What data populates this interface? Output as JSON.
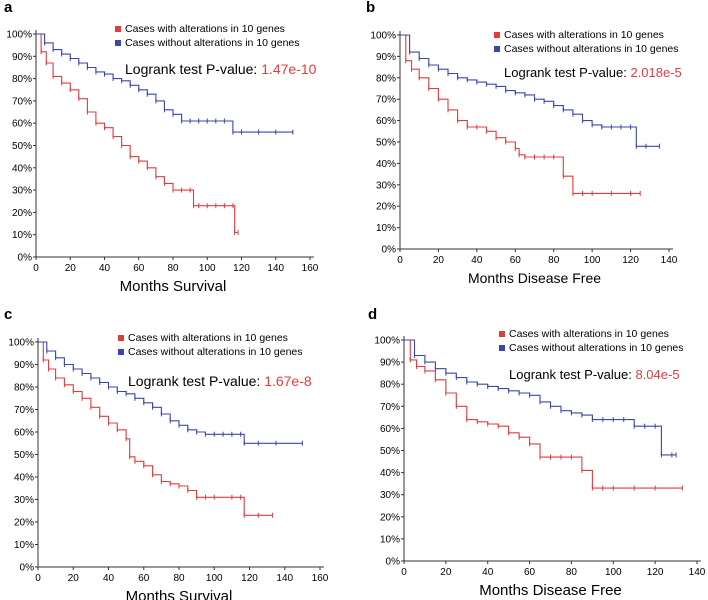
{
  "chart_data": [
    {
      "panel": "a",
      "type": "line",
      "title": "",
      "xlabel": "Months Survival",
      "ylabel": "",
      "xlim": [
        0,
        160
      ],
      "ylim": [
        0,
        100
      ],
      "x_ticks": [
        0,
        20,
        40,
        60,
        80,
        100,
        120,
        140,
        160
      ],
      "y_ticks": [
        "0%",
        "10%",
        "20%",
        "30%",
        "40%",
        "50%",
        "60%",
        "70%",
        "80%",
        "90%",
        "100%"
      ],
      "legend": "top-right",
      "logrank_label": "Logrank test P-value:",
      "logrank_value": "1.47e-10",
      "series": [
        {
          "name": "Cases with alterations in 10 genes",
          "color": "#e03c3c",
          "x": [
            0,
            3,
            6,
            10,
            15,
            20,
            25,
            30,
            35,
            40,
            45,
            50,
            55,
            60,
            65,
            70,
            75,
            80,
            85,
            90,
            92,
            95,
            100,
            105,
            110,
            115,
            116,
            118
          ],
          "y": [
            100,
            92,
            87,
            81,
            78,
            75,
            71,
            65,
            60,
            58,
            54,
            50,
            45,
            43,
            40,
            36,
            33,
            30,
            30,
            30,
            23,
            23,
            23,
            23,
            23,
            23,
            11,
            11
          ]
        },
        {
          "name": "Cases without alterations in 10 genes",
          "color": "#3c44b4",
          "x": [
            0,
            5,
            10,
            15,
            20,
            25,
            30,
            35,
            40,
            45,
            50,
            55,
            60,
            65,
            70,
            75,
            80,
            85,
            90,
            95,
            100,
            105,
            110,
            115,
            120,
            130,
            140,
            150
          ],
          "y": [
            100,
            96,
            93,
            91,
            89,
            87,
            85,
            83,
            82,
            80,
            79,
            77,
            75,
            73,
            70,
            66,
            64,
            61,
            61,
            61,
            61,
            61,
            61,
            56,
            56,
            56,
            56,
            56
          ]
        }
      ]
    },
    {
      "panel": "b",
      "type": "line",
      "title": "",
      "xlabel": "Months Disease Free",
      "ylabel": "",
      "xlim": [
        0,
        140
      ],
      "ylim": [
        0,
        100
      ],
      "x_ticks": [
        0,
        20,
        40,
        60,
        80,
        100,
        120,
        140
      ],
      "y_ticks": [
        "0%",
        "10%",
        "20%",
        "30%",
        "40%",
        "50%",
        "60%",
        "70%",
        "80%",
        "90%",
        "100%"
      ],
      "legend": "top-right",
      "logrank_label": "Logrank test P-value:",
      "logrank_value": "2.018e-5",
      "series": [
        {
          "name": "Cases with alterations in 10 genes",
          "color": "#e03c3c",
          "x": [
            0,
            3,
            6,
            10,
            15,
            20,
            25,
            30,
            35,
            40,
            45,
            50,
            55,
            60,
            62,
            65,
            70,
            75,
            80,
            85,
            90,
            95,
            100,
            110,
            120,
            125
          ],
          "y": [
            100,
            88,
            84,
            80,
            75,
            70,
            65,
            60,
            57,
            57,
            55,
            52,
            50,
            47,
            44,
            43,
            43,
            43,
            43,
            34,
            26,
            26,
            26,
            26,
            26,
            26
          ]
        },
        {
          "name": "Cases without alterations in 10 genes",
          "color": "#3c44b4",
          "x": [
            0,
            5,
            10,
            15,
            20,
            25,
            30,
            35,
            40,
            45,
            50,
            55,
            60,
            65,
            70,
            75,
            80,
            85,
            90,
            95,
            100,
            105,
            110,
            115,
            120,
            123,
            128,
            135
          ],
          "y": [
            100,
            92,
            89,
            86,
            84,
            82,
            80,
            79,
            78,
            77,
            76,
            74,
            73,
            72,
            70,
            69,
            67,
            65,
            63,
            60,
            58,
            57,
            57,
            57,
            57,
            48,
            48,
            48
          ]
        }
      ]
    },
    {
      "panel": "c",
      "type": "line",
      "title": "",
      "xlabel": "Months Survival",
      "ylabel": "",
      "xlim": [
        0,
        160
      ],
      "ylim": [
        0,
        100
      ],
      "x_ticks": [
        0,
        20,
        40,
        60,
        80,
        100,
        120,
        140,
        160
      ],
      "y_ticks": [
        "0%",
        "10%",
        "20%",
        "30%",
        "40%",
        "50%",
        "60%",
        "70%",
        "80%",
        "90%",
        "100%"
      ],
      "legend": "top-right",
      "logrank_label": "Logrank test P-value:",
      "logrank_value": "1.67e-8",
      "series": [
        {
          "name": "Cases with alterations in 10 genes",
          "color": "#e03c3c",
          "x": [
            0,
            3,
            6,
            10,
            15,
            20,
            25,
            30,
            35,
            40,
            45,
            50,
            52,
            55,
            60,
            65,
            70,
            75,
            80,
            85,
            90,
            95,
            100,
            110,
            115,
            117,
            125,
            133
          ],
          "y": [
            100,
            92,
            88,
            84,
            81,
            78,
            75,
            71,
            67,
            64,
            61,
            57,
            49,
            47,
            45,
            41,
            38,
            37,
            36,
            34,
            31,
            31,
            31,
            31,
            31,
            23,
            23,
            23
          ]
        },
        {
          "name": "Cases without alterations in 10 genes",
          "color": "#3c44b4",
          "x": [
            0,
            5,
            10,
            15,
            20,
            25,
            30,
            35,
            40,
            45,
            50,
            55,
            60,
            65,
            70,
            75,
            80,
            85,
            90,
            95,
            100,
            105,
            110,
            115,
            117,
            125,
            135,
            150
          ],
          "y": [
            100,
            96,
            93,
            90,
            88,
            86,
            84,
            82,
            80,
            78,
            77,
            75,
            73,
            71,
            68,
            65,
            63,
            61,
            60,
            59,
            59,
            59,
            59,
            59,
            55,
            55,
            55,
            55
          ]
        }
      ]
    },
    {
      "panel": "d",
      "type": "line",
      "title": "",
      "xlabel": "Months Disease Free",
      "ylabel": "",
      "xlim": [
        0,
        140
      ],
      "ylim": [
        0,
        100
      ],
      "x_ticks": [
        0,
        20,
        40,
        60,
        80,
        100,
        120,
        140
      ],
      "y_ticks": [
        "0%",
        "10%",
        "20%",
        "30%",
        "40%",
        "50%",
        "60%",
        "70%",
        "80%",
        "90%",
        "100%"
      ],
      "legend": "top-right",
      "logrank_label": "Logrank test P-value:",
      "logrank_value": "8.04e-5",
      "series": [
        {
          "name": "Cases with alterations in 10 genes",
          "color": "#e03c3c",
          "x": [
            0,
            3,
            6,
            10,
            15,
            20,
            25,
            30,
            35,
            40,
            45,
            50,
            55,
            60,
            65,
            70,
            75,
            80,
            85,
            90,
            95,
            100,
            110,
            120,
            133
          ],
          "y": [
            100,
            91,
            88,
            86,
            82,
            76,
            70,
            64,
            63,
            62,
            61,
            58,
            56,
            53,
            47,
            47,
            47,
            47,
            41,
            33,
            33,
            33,
            33,
            33,
            33
          ]
        },
        {
          "name": "Cases without alterations in 10 genes",
          "color": "#3c44b4",
          "x": [
            0,
            5,
            10,
            15,
            20,
            25,
            30,
            35,
            40,
            45,
            50,
            55,
            60,
            65,
            70,
            75,
            80,
            85,
            90,
            95,
            100,
            105,
            110,
            115,
            120,
            123,
            128,
            130
          ],
          "y": [
            100,
            93,
            90,
            87,
            85,
            83,
            81,
            80,
            79,
            78,
            77,
            76,
            75,
            72,
            70,
            68,
            67,
            66,
            64,
            64,
            64,
            64,
            61,
            61,
            61,
            48,
            48,
            48
          ]
        }
      ]
    }
  ]
}
